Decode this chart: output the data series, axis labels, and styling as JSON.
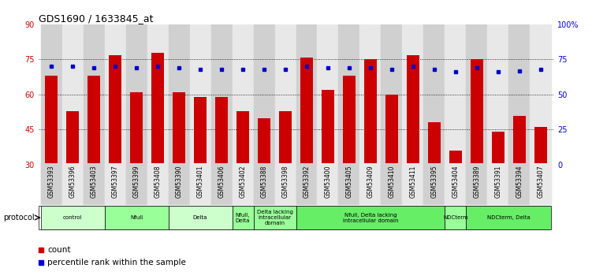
{
  "title": "GDS1690 / 1633845_at",
  "samples": [
    "GSM53393",
    "GSM53396",
    "GSM53403",
    "GSM53397",
    "GSM53399",
    "GSM53408",
    "GSM53390",
    "GSM53401",
    "GSM53406",
    "GSM53402",
    "GSM53388",
    "GSM53398",
    "GSM53392",
    "GSM53400",
    "GSM53405",
    "GSM53409",
    "GSM53410",
    "GSM53411",
    "GSM53395",
    "GSM53404",
    "GSM53389",
    "GSM53391",
    "GSM53394",
    "GSM53407"
  ],
  "counts": [
    68,
    53,
    68,
    77,
    61,
    78,
    61,
    59,
    59,
    53,
    50,
    53,
    76,
    62,
    68,
    75,
    60,
    77,
    48,
    36,
    75,
    44,
    51,
    46
  ],
  "percentile": [
    70,
    70,
    69,
    70,
    69,
    70,
    69,
    68,
    68,
    68,
    68,
    68,
    70,
    69,
    69,
    69,
    68,
    70,
    68,
    66,
    69,
    66,
    67,
    68
  ],
  "ylim_left": [
    30,
    90
  ],
  "ylim_right": [
    0,
    100
  ],
  "yticks_left": [
    30,
    45,
    60,
    75,
    90
  ],
  "yticks_right": [
    0,
    25,
    50,
    75,
    100
  ],
  "ytick_labels_left": [
    "30",
    "45",
    "60",
    "75",
    "90"
  ],
  "ytick_labels_right": [
    "0",
    "25",
    "50",
    "75",
    "100%"
  ],
  "bar_color": "#cc0000",
  "dot_color": "#0000cc",
  "protocol_groups": [
    {
      "label": "control",
      "start": 0,
      "end": 3,
      "color": "#ccffcc"
    },
    {
      "label": "Nfull",
      "start": 3,
      "end": 6,
      "color": "#99ff99"
    },
    {
      "label": "Delta",
      "start": 6,
      "end": 9,
      "color": "#ccffcc"
    },
    {
      "label": "Nfull,\nDelta",
      "start": 9,
      "end": 10,
      "color": "#99ff99"
    },
    {
      "label": "Delta lacking\nintracellular\ndomain",
      "start": 10,
      "end": 12,
      "color": "#99ff99"
    },
    {
      "label": "Nfull, Delta lacking\nintracellular domain",
      "start": 12,
      "end": 19,
      "color": "#66ee66"
    },
    {
      "label": "NDCterm",
      "start": 19,
      "end": 20,
      "color": "#99ff99"
    },
    {
      "label": "NDCterm, Delta",
      "start": 20,
      "end": 24,
      "color": "#66ee66"
    }
  ],
  "legend_bar_label": "count",
  "legend_dot_label": "percentile rank within the sample",
  "protocol_label": "protocol",
  "grid_yticks": [
    45,
    60,
    75
  ]
}
